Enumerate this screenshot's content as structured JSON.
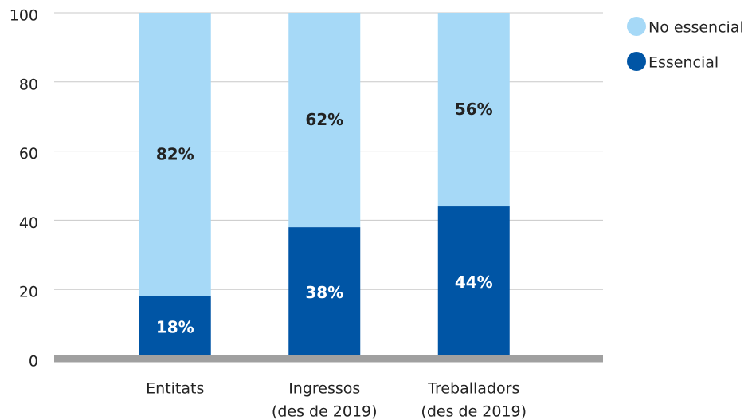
{
  "chart_data": {
    "type": "stacked_bar",
    "categories": [
      [
        "Entitats"
      ],
      [
        "Ingressos",
        "(des de 2019)"
      ],
      [
        "Treballadors",
        "(des de 2019)"
      ]
    ],
    "series": [
      {
        "name": "Essencial",
        "color": "#0055a5",
        "values": [
          18,
          38,
          44
        ],
        "value_labels": [
          "18%",
          "38%",
          "44%"
        ]
      },
      {
        "name": "No essencial",
        "color": "#a6d9f7",
        "values": [
          82,
          62,
          56
        ],
        "value_labels": [
          "82%",
          "62%",
          "56%"
        ]
      }
    ],
    "ylim": [
      0,
      100
    ],
    "yticks": [
      0,
      20,
      40,
      60,
      80,
      100
    ],
    "grid": true,
    "legend": "top-right"
  }
}
